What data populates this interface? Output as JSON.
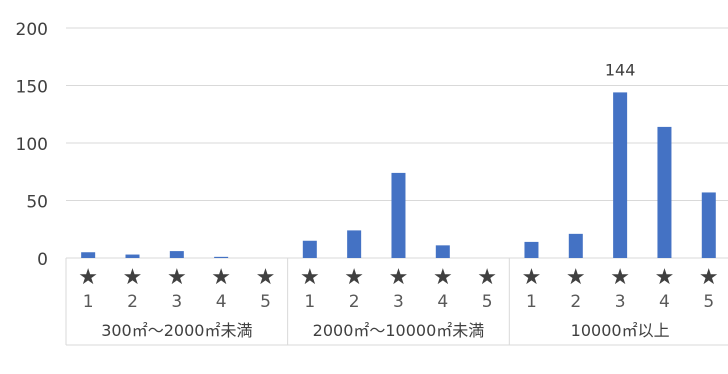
{
  "chart_data": {
    "type": "bar",
    "title": "",
    "xlabel": "",
    "ylabel": "",
    "ylim": [
      0,
      200
    ],
    "yticks": [
      0,
      50,
      100,
      150,
      200
    ],
    "grid": true,
    "legend": "none",
    "groups": [
      {
        "label": "300㎡〜2000㎡未満",
        "categories": [
          "★\n1",
          "★\n2",
          "★\n3",
          "★\n4",
          "★\n5"
        ],
        "values": [
          5,
          3,
          6,
          1,
          0
        ]
      },
      {
        "label": "2000㎡〜10000㎡未満",
        "categories": [
          "★\n1",
          "★\n2",
          "★\n3",
          "★\n4",
          "★\n5"
        ],
        "values": [
          15,
          24,
          74,
          11,
          0
        ]
      },
      {
        "label": "10000㎡以上",
        "categories": [
          "★\n1",
          "★\n2",
          "★\n3",
          "★\n4",
          "★\n5"
        ],
        "values": [
          14,
          21,
          144,
          114,
          57
        ]
      }
    ],
    "data_labels": [
      {
        "group": 2,
        "index": 2,
        "text": "144"
      }
    ],
    "colors": {
      "bar": "#4472C4",
      "grid": "#D9D9D9",
      "axis_text": "#404040",
      "label_text": "#595959"
    }
  }
}
